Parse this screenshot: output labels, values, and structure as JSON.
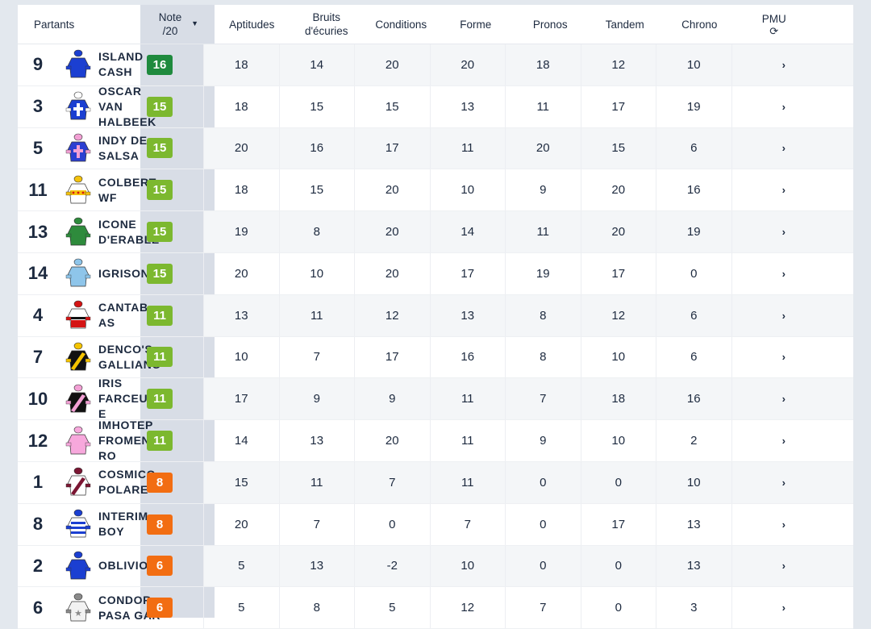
{
  "header": {
    "partants": "Partants",
    "note_line1": "Note",
    "note_line2": "/20",
    "note_sort_icon": "caret-down-icon",
    "columns": [
      {
        "l1": "Aptitudes",
        "l2": ""
      },
      {
        "l1": "Bruits",
        "l2": "d'écuries"
      },
      {
        "l1": "Conditions",
        "l2": ""
      },
      {
        "l1": "Forme",
        "l2": ""
      },
      {
        "l1": "Pronos",
        "l2": ""
      },
      {
        "l1": "Tandem",
        "l2": ""
      },
      {
        "l1": "Chrono",
        "l2": ""
      }
    ],
    "pmu": "PMU",
    "pmu_icon": "refresh-icon"
  },
  "colors": {
    "dark_green": "#1f8a3e",
    "green": "#7cb82f",
    "orange": "#f26d12",
    "text": "#1d2a3f"
  },
  "rows": [
    {
      "num": "9",
      "name": "ISLAND CASH",
      "note": "16",
      "tier": "dark_green",
      "silk": "blue-jersey",
      "scores": [
        "18",
        "14",
        "20",
        "20",
        "18",
        "12",
        "10"
      ],
      "pmu": "›"
    },
    {
      "num": "3",
      "name": "OSCAR VAN HALBEEK",
      "note": "15",
      "tier": "green",
      "silk": "blue-white-cross-jersey",
      "scores": [
        "18",
        "15",
        "15",
        "13",
        "11",
        "17",
        "19"
      ],
      "pmu": "›"
    },
    {
      "num": "5",
      "name": "INDY DE SALSA",
      "note": "15",
      "tier": "green",
      "silk": "blue-pink-cross-jersey",
      "scores": [
        "20",
        "16",
        "17",
        "11",
        "20",
        "15",
        "6"
      ],
      "pmu": "›"
    },
    {
      "num": "11",
      "name": "COLBERT WF",
      "note": "15",
      "tier": "green",
      "silk": "white-yellow-red-band-jersey",
      "scores": [
        "18",
        "15",
        "20",
        "10",
        "9",
        "20",
        "16"
      ],
      "pmu": "›"
    },
    {
      "num": "13",
      "name": "ICONE D'ERABLE",
      "note": "15",
      "tier": "green",
      "silk": "green-jersey",
      "scores": [
        "19",
        "8",
        "20",
        "14",
        "11",
        "20",
        "19"
      ],
      "pmu": "›"
    },
    {
      "num": "14",
      "name": "IGRISONI",
      "note": "15",
      "tier": "green",
      "silk": "light-blue-jersey",
      "scores": [
        "20",
        "10",
        "20",
        "17",
        "19",
        "17",
        "0"
      ],
      "pmu": "›"
    },
    {
      "num": "4",
      "name": "CANTAB AS",
      "note": "11",
      "tier": "green",
      "silk": "white-black-red-jersey",
      "scores": [
        "13",
        "11",
        "12",
        "13",
        "8",
        "12",
        "6"
      ],
      "pmu": "›"
    },
    {
      "num": "7",
      "name": "DENCO'S GALLIANO",
      "note": "11",
      "tier": "green",
      "silk": "black-yellow-sash-jersey",
      "scores": [
        "10",
        "7",
        "17",
        "16",
        "8",
        "10",
        "6"
      ],
      "pmu": "›"
    },
    {
      "num": "10",
      "name": "IRIS FARCEUSE",
      "note": "11",
      "tier": "green",
      "silk": "black-pink-sash-jersey",
      "scores": [
        "17",
        "9",
        "9",
        "11",
        "7",
        "18",
        "16"
      ],
      "pmu": "›"
    },
    {
      "num": "12",
      "name": "IMHOTEP FROMENTRO",
      "note": "11",
      "tier": "green",
      "silk": "pink-jersey",
      "scores": [
        "14",
        "13",
        "20",
        "11",
        "9",
        "10",
        "2"
      ],
      "pmu": "›"
    },
    {
      "num": "1",
      "name": "COSMICO POLARE",
      "note": "8",
      "tier": "orange",
      "silk": "white-maroon-sash-jersey",
      "scores": [
        "15",
        "11",
        "7",
        "11",
        "0",
        "0",
        "10"
      ],
      "pmu": "›"
    },
    {
      "num": "8",
      "name": "INTERIM BOY",
      "note": "8",
      "tier": "orange",
      "silk": "blue-white-hoops-jersey",
      "scores": [
        "20",
        "7",
        "0",
        "7",
        "0",
        "17",
        "13"
      ],
      "pmu": "›"
    },
    {
      "num": "2",
      "name": "OBLIVION",
      "note": "6",
      "tier": "orange",
      "silk": "blue-jersey",
      "scores": [
        "5",
        "13",
        "-2",
        "10",
        "0",
        "0",
        "13"
      ],
      "pmu": "›"
    },
    {
      "num": "6",
      "name": "CONDOR PASA GAR",
      "note": "6",
      "tier": "orange",
      "silk": "white-grey-star-jersey",
      "scores": [
        "5",
        "8",
        "5",
        "12",
        "7",
        "0",
        "3"
      ],
      "pmu": "›"
    }
  ]
}
